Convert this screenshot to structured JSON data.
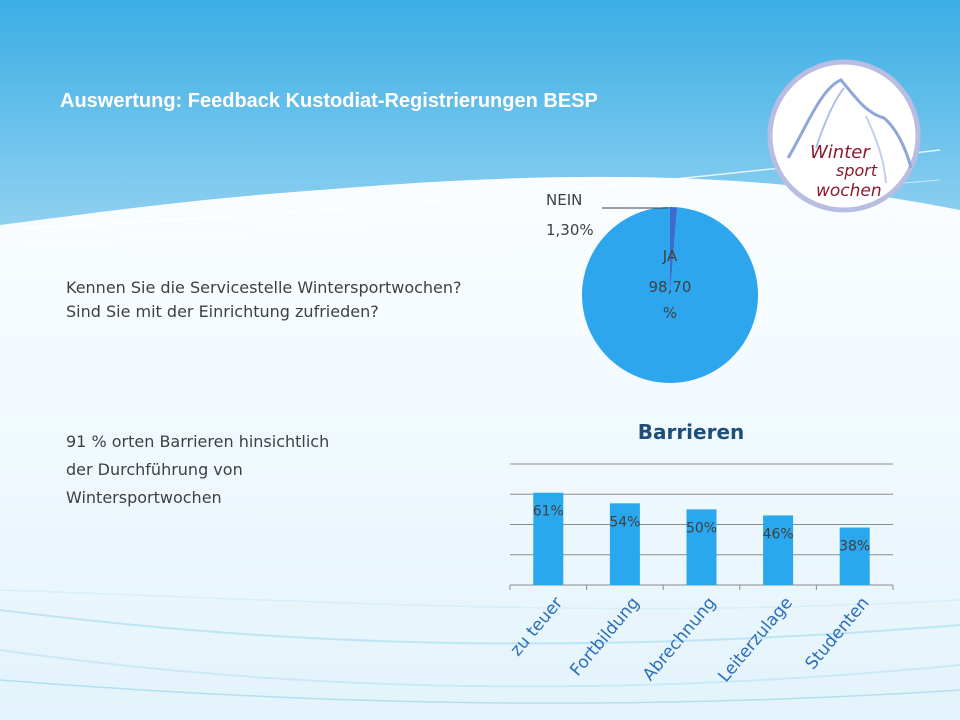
{
  "title": "Auswertung: Feedback Kustodiat-Registrierungen BESP",
  "question": {
    "line1": "Kennen Sie die Servicestelle Wintersportwochen?",
    "line2": "Sind Sie mit der Einrichtung zufrieden?"
  },
  "note": {
    "line1": "91 %  orten Barrieren hinsichtlich",
    "line2": "der Durchführung von",
    "line3": "Wintersportwochen"
  },
  "logo": {
    "word1": "Winter",
    "word2": "sport",
    "word3": "wochen"
  },
  "colors": {
    "header_blue": "#2aa0de",
    "bar_blue": "#29a8ef",
    "pie_blue": "#2ea6ee",
    "pie_dark": "#3d6bd1",
    "logo_red": "#8b1a2f"
  },
  "chart_data": [
    {
      "type": "pie",
      "labels": [
        "JA",
        "NEIN"
      ],
      "values": [
        98.7,
        1.3
      ],
      "data_labels": [
        "98,70 %",
        "1,30%"
      ]
    },
    {
      "type": "bar",
      "title": "Barrieren",
      "categories": [
        "zu teuer",
        "Fortbildung",
        "Abrechnung",
        "Leiterzulage",
        "Studenten"
      ],
      "values": [
        61,
        54,
        50,
        46,
        38
      ],
      "data_labels": [
        "61%",
        "54%",
        "50%",
        "46%",
        "38%"
      ],
      "ylim": [
        0,
        80
      ],
      "grid": true,
      "legend": "none"
    }
  ]
}
